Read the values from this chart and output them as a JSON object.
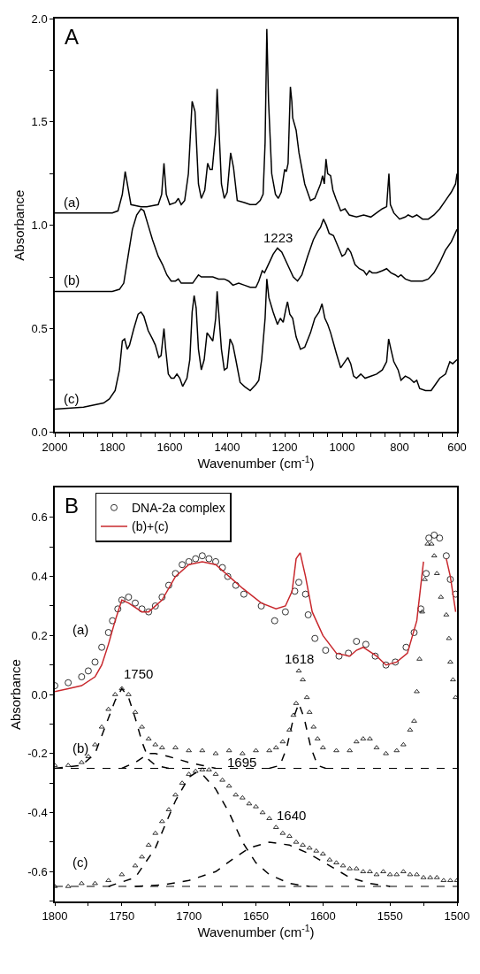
{
  "chart_data": [
    {
      "type": "line",
      "xlabel": "Wavenumber (cm$^{-1}$)",
      "ylabel": "Absorbance",
      "xlim": [
        2000,
        600
      ],
      "ylim": [
        0,
        2
      ],
      "legend": false,
      "xticks": [
        2000,
        {
          "value": 1950,
          "label": null
        },
        {
          "value": 1900,
          "label": null
        },
        {
          "value": 1850,
          "label": null
        },
        1800,
        {
          "value": 1750,
          "label": null
        },
        {
          "value": 1700,
          "label": null
        },
        {
          "value": 1650,
          "label": null
        },
        1600,
        {
          "value": 1550,
          "label": null
        },
        {
          "value": 1500,
          "label": null
        },
        {
          "value": 1450,
          "label": null
        },
        1400,
        {
          "value": 1350,
          "label": null
        },
        {
          "value": 1300,
          "label": null
        },
        {
          "value": 1250,
          "label": null
        },
        1200,
        {
          "value": 1150,
          "label": null
        },
        {
          "value": 1100,
          "label": null
        },
        {
          "value": 1050,
          "label": null
        },
        1000,
        {
          "value": 950,
          "label": null
        },
        {
          "value": 900,
          "label": null
        },
        {
          "value": 850,
          "label": null
        },
        800,
        {
          "value": 750,
          "label": null
        },
        {
          "value": 700,
          "label": null
        },
        {
          "value": 650,
          "label": null
        },
        600
      ],
      "yticks": [
        {
          "value": 0,
          "label": "0.0"
        },
        {
          "value": 0.25,
          "label": null
        },
        0.5,
        {
          "value": 0.75,
          "label": null
        },
        {
          "value": 1,
          "label": "1.0"
        },
        {
          "value": 1.25,
          "label": null
        },
        1.5,
        {
          "value": 1.75,
          "label": null
        },
        {
          "value": 2,
          "label": "2.0"
        }
      ],
      "annotations": [
        "A",
        "1223"
      ],
      "series": [
        {
          "name": "(a)",
          "color": "#000000",
          "x": [
            2000,
            1800,
            1780,
            1765,
            1755,
            1745,
            1735,
            1700,
            1680,
            1640,
            1628,
            1620,
            1612,
            1600,
            1580,
            1570,
            1560,
            1548,
            1535,
            1522,
            1512,
            1500,
            1490,
            1478,
            1468,
            1460,
            1452,
            1440,
            1435,
            1428,
            1420,
            1410,
            1400,
            1388,
            1378,
            1365,
            1340,
            1320,
            1300,
            1285,
            1275,
            1268,
            1262,
            1256,
            1245,
            1232,
            1222,
            1212,
            1200,
            1194,
            1188,
            1180,
            1175,
            1172,
            1160,
            1150,
            1130,
            1110,
            1095,
            1075,
            1068,
            1062,
            1056,
            1050,
            1040,
            1032,
            1022,
            1005,
            990,
            975,
            950,
            925,
            900,
            880,
            860,
            845,
            837,
            832,
            820,
            800,
            780,
            770,
            755,
            740,
            720,
            700,
            680,
            660,
            640,
            620,
            605,
            600
          ],
          "values": [
            1.06,
            1.06,
            1.07,
            1.15,
            1.26,
            1.18,
            1.1,
            1.09,
            1.09,
            1.1,
            1.15,
            1.3,
            1.15,
            1.1,
            1.11,
            1.13,
            1.1,
            1.12,
            1.25,
            1.6,
            1.55,
            1.2,
            1.13,
            1.17,
            1.3,
            1.27,
            1.27,
            1.45,
            1.66,
            1.45,
            1.2,
            1.13,
            1.16,
            1.35,
            1.28,
            1.12,
            1.11,
            1.1,
            1.1,
            1.12,
            1.15,
            1.4,
            1.95,
            1.6,
            1.25,
            1.15,
            1.13,
            1.16,
            1.27,
            1.26,
            1.3,
            1.67,
            1.6,
            1.52,
            1.46,
            1.35,
            1.2,
            1.12,
            1.13,
            1.2,
            1.24,
            1.2,
            1.32,
            1.25,
            1.24,
            1.17,
            1.13,
            1.07,
            1.08,
            1.05,
            1.04,
            1.05,
            1.04,
            1.06,
            1.08,
            1.09,
            1.25,
            1.1,
            1.06,
            1.03,
            1.04,
            1.05,
            1.04,
            1.05,
            1.03,
            1.03,
            1.05,
            1.08,
            1.12,
            1.16,
            1.2,
            1.25
          ]
        },
        {
          "name": "(b)",
          "color": "#000000",
          "x": [
            2000,
            1800,
            1775,
            1760,
            1745,
            1730,
            1715,
            1700,
            1690,
            1675,
            1660,
            1640,
            1625,
            1610,
            1595,
            1580,
            1570,
            1560,
            1540,
            1520,
            1510,
            1500,
            1490,
            1470,
            1450,
            1430,
            1410,
            1395,
            1380,
            1360,
            1340,
            1320,
            1300,
            1290,
            1278,
            1270,
            1260,
            1240,
            1225,
            1210,
            1190,
            1170,
            1155,
            1140,
            1120,
            1100,
            1085,
            1075,
            1065,
            1055,
            1045,
            1030,
            1015,
            1000,
            990,
            980,
            970,
            955,
            940,
            925,
            915,
            905,
            895,
            880,
            860,
            845,
            830,
            815,
            805,
            795,
            780,
            760,
            740,
            720,
            700,
            680,
            660,
            640,
            620,
            600
          ],
          "values": [
            0.68,
            0.68,
            0.69,
            0.72,
            0.85,
            0.98,
            1.05,
            1.08,
            1.07,
            1.0,
            0.93,
            0.85,
            0.81,
            0.76,
            0.73,
            0.73,
            0.74,
            0.72,
            0.72,
            0.72,
            0.74,
            0.76,
            0.75,
            0.75,
            0.75,
            0.74,
            0.74,
            0.73,
            0.71,
            0.72,
            0.71,
            0.7,
            0.7,
            0.73,
            0.78,
            0.77,
            0.8,
            0.86,
            0.89,
            0.87,
            0.81,
            0.75,
            0.73,
            0.76,
            0.85,
            0.93,
            0.97,
            0.99,
            1.03,
            1.0,
            0.96,
            0.95,
            0.9,
            0.85,
            0.86,
            0.89,
            0.87,
            0.81,
            0.79,
            0.78,
            0.76,
            0.78,
            0.77,
            0.77,
            0.78,
            0.79,
            0.77,
            0.76,
            0.75,
            0.76,
            0.74,
            0.73,
            0.73,
            0.73,
            0.74,
            0.77,
            0.82,
            0.88,
            0.92,
            0.98
          ]
        },
        {
          "name": "(c)",
          "color": "#000000",
          "x": [
            2000,
            1900,
            1830,
            1810,
            1790,
            1775,
            1765,
            1757,
            1748,
            1740,
            1725,
            1710,
            1700,
            1690,
            1675,
            1660,
            1650,
            1638,
            1630,
            1624,
            1620,
            1614,
            1605,
            1595,
            1585,
            1575,
            1565,
            1555,
            1540,
            1530,
            1522,
            1515,
            1508,
            1500,
            1490,
            1480,
            1470,
            1460,
            1450,
            1440,
            1435,
            1428,
            1420,
            1410,
            1400,
            1390,
            1380,
            1370,
            1355,
            1340,
            1320,
            1300,
            1290,
            1280,
            1268,
            1262,
            1255,
            1240,
            1225,
            1215,
            1205,
            1195,
            1190,
            1182,
            1172,
            1160,
            1145,
            1130,
            1110,
            1095,
            1080,
            1070,
            1060,
            1050,
            1040,
            1030,
            1020,
            1005,
            995,
            980,
            970,
            960,
            950,
            935,
            920,
            900,
            880,
            860,
            845,
            838,
            830,
            820,
            805,
            795,
            780,
            765,
            750,
            740,
            730,
            710,
            690,
            675,
            660,
            640,
            625,
            615,
            600
          ],
          "values": [
            0.11,
            0.12,
            0.14,
            0.16,
            0.2,
            0.3,
            0.44,
            0.45,
            0.4,
            0.42,
            0.5,
            0.57,
            0.58,
            0.56,
            0.49,
            0.45,
            0.42,
            0.36,
            0.37,
            0.45,
            0.5,
            0.4,
            0.28,
            0.26,
            0.26,
            0.28,
            0.26,
            0.22,
            0.26,
            0.35,
            0.58,
            0.66,
            0.6,
            0.4,
            0.3,
            0.35,
            0.48,
            0.46,
            0.44,
            0.55,
            0.68,
            0.55,
            0.4,
            0.3,
            0.31,
            0.45,
            0.42,
            0.35,
            0.24,
            0.22,
            0.2,
            0.23,
            0.25,
            0.35,
            0.55,
            0.74,
            0.65,
            0.58,
            0.52,
            0.55,
            0.53,
            0.6,
            0.63,
            0.57,
            0.55,
            0.46,
            0.4,
            0.41,
            0.48,
            0.55,
            0.58,
            0.62,
            0.55,
            0.52,
            0.48,
            0.43,
            0.38,
            0.31,
            0.33,
            0.36,
            0.33,
            0.27,
            0.26,
            0.28,
            0.26,
            0.27,
            0.28,
            0.3,
            0.34,
            0.45,
            0.4,
            0.34,
            0.3,
            0.25,
            0.27,
            0.26,
            0.24,
            0.25,
            0.21,
            0.2,
            0.2,
            0.23,
            0.26,
            0.28,
            0.34,
            0.33,
            0.35
          ]
        }
      ]
    },
    {
      "type": "line",
      "xlabel": "Wavenumber (cm$^{-1}$)",
      "ylabel": "Absorbance",
      "xlim": [
        1800,
        1500
      ],
      "ylim": [
        -0.7,
        0.7
      ],
      "legend": "top left",
      "xticks": [
        1800,
        {
          "value": 1775,
          "label": null
        },
        1750,
        {
          "value": 1725,
          "label": null
        },
        1700,
        {
          "value": 1675,
          "label": null
        },
        1650,
        {
          "value": 1625,
          "label": null
        },
        1600,
        {
          "value": 1575,
          "label": null
        },
        1550,
        {
          "value": 1525,
          "label": null
        },
        1500
      ],
      "yticks": [
        {
          "value": -0.7,
          "label": null
        },
        -0.6,
        {
          "value": -0.5,
          "label": null
        },
        -0.4,
        {
          "value": -0.3,
          "label": null
        },
        -0.2,
        {
          "value": -0.1,
          "label": null
        },
        {
          "value": 0,
          "label": "0.0"
        },
        {
          "value": 0.1,
          "label": null
        },
        0.2,
        {
          "value": 0.3,
          "label": null
        },
        0.4,
        {
          "value": 0.5,
          "label": null
        },
        0.6
      ],
      "annotations": [
        "B",
        "(a)",
        "(b)",
        "(c)",
        "1750",
        "1618",
        "1695",
        "1640"
      ],
      "ref_lines": [
        {
          "axis": "y",
          "value": -0.25,
          "color": "#000000",
          "line_style": "dashed"
        },
        {
          "axis": "y",
          "value": -0.65,
          "color": "#000000",
          "line_style": "dashed"
        }
      ],
      "series": [
        {
          "name": "DNA-2a complex",
          "type": "scatter",
          "marker": "circle",
          "color": "#000000",
          "x": [
            1800,
            1790,
            1780,
            1775,
            1770,
            1765,
            1760,
            1757,
            1753,
            1750,
            1745,
            1740,
            1735,
            1730,
            1725,
            1720,
            1715,
            1710,
            1705,
            1700,
            1695,
            1690,
            1685,
            1680,
            1675,
            1671,
            1665,
            1659,
            1646,
            1636,
            1628,
            1621,
            1618,
            1613,
            1611,
            1606,
            1598,
            1588,
            1581,
            1575,
            1568,
            1561,
            1553,
            1546,
            1538,
            1532,
            1527,
            1523,
            1521,
            1517,
            1513,
            1508,
            1505,
            1501
          ],
          "values": [
            0.03,
            0.04,
            0.06,
            0.08,
            0.11,
            0.16,
            0.21,
            0.25,
            0.29,
            0.32,
            0.33,
            0.31,
            0.29,
            0.28,
            0.3,
            0.33,
            0.37,
            0.41,
            0.44,
            0.45,
            0.46,
            0.47,
            0.46,
            0.45,
            0.43,
            0.4,
            0.37,
            0.34,
            0.3,
            0.25,
            0.28,
            0.35,
            0.38,
            0.34,
            0.27,
            0.19,
            0.15,
            0.13,
            0.14,
            0.18,
            0.17,
            0.13,
            0.1,
            0.11,
            0.16,
            0.21,
            0.29,
            0.41,
            0.53,
            0.54,
            0.53,
            0.47,
            0.39,
            0.34
          ]
        },
        {
          "name": "(b)+(c)",
          "line_style": "solid",
          "color": "#c8282d",
          "x": [
            1800,
            1790,
            1780,
            1770,
            1765,
            1760,
            1755,
            1750,
            1745,
            1735,
            1730,
            1720,
            1710,
            1700,
            1690,
            1680,
            1670,
            1660,
            1646,
            1635,
            1628,
            1623,
            1620,
            1617,
            1613,
            1608,
            1600,
            1590,
            1580,
            1575,
            1570,
            1560,
            1553,
            1545,
            1537,
            1530,
            1525,
            1521,
            1517,
            1513,
            1508,
            1505,
            1501
          ],
          "values": [
            0.01,
            0.02,
            0.03,
            0.06,
            0.1,
            0.17,
            0.25,
            0.32,
            0.31,
            0.28,
            0.28,
            0.32,
            0.4,
            0.44,
            0.45,
            0.44,
            0.4,
            0.36,
            0.31,
            0.29,
            0.3,
            0.35,
            0.46,
            0.48,
            0.4,
            0.28,
            0.2,
            0.14,
            0.13,
            0.15,
            0.16,
            0.13,
            0.1,
            0.11,
            0.14,
            0.25,
            0.45,
            null,
            null,
            null,
            0.46,
            0.4,
            0.28
          ]
        },
        {
          "type": "scatter",
          "marker": "triangle",
          "color": "#000000",
          "x": [
            1800,
            1790,
            1780,
            1775,
            1770,
            1765,
            1760,
            1755,
            1750,
            1745,
            1740,
            1735,
            1730,
            1725,
            1720,
            1710,
            1700,
            1690,
            1680,
            1670,
            1660,
            1650,
            1640,
            1635,
            1630,
            1625,
            1622,
            1620,
            1618,
            1615,
            1612,
            1610,
            1607,
            1604,
            1600,
            1590,
            1580,
            1575,
            1570,
            1565,
            1560,
            1553,
            1545,
            1540,
            1535,
            1532,
            1530,
            1528,
            1526,
            1524,
            1522,
            1519,
            1517,
            1515,
            1512,
            1508,
            1506,
            1505,
            1503,
            1501
          ],
          "values": [
            -0.24,
            -0.24,
            -0.23,
            -0.21,
            -0.17,
            -0.11,
            -0.05,
            0.0,
            0.02,
            0.0,
            -0.06,
            -0.11,
            -0.15,
            -0.17,
            -0.18,
            -0.18,
            -0.19,
            -0.19,
            -0.2,
            -0.19,
            -0.2,
            -0.19,
            -0.19,
            -0.18,
            -0.16,
            -0.12,
            -0.07,
            -0.03,
            0.08,
            0.05,
            -0.01,
            -0.06,
            -0.11,
            -0.15,
            -0.18,
            -0.19,
            -0.19,
            -0.16,
            -0.15,
            -0.15,
            -0.18,
            -0.2,
            -0.19,
            -0.17,
            -0.12,
            -0.09,
            0.01,
            0.12,
            0.28,
            0.39,
            0.51,
            0.51,
            0.47,
            0.41,
            0.33,
            0.27,
            0.19,
            0.11,
            0.05,
            -0.01
          ]
        },
        {
          "type": "scatter",
          "marker": "triangle",
          "color": "#000000",
          "x": [
            1800,
            1790,
            1780,
            1770,
            1760,
            1750,
            1740,
            1735,
            1730,
            1725,
            1720,
            1715,
            1710,
            1705,
            1700,
            1695,
            1690,
            1685,
            1680,
            1675,
            1670,
            1665,
            1660,
            1655,
            1650,
            1645,
            1640,
            1635,
            1630,
            1625,
            1620,
            1615,
            1610,
            1605,
            1600,
            1595,
            1590,
            1585,
            1580,
            1575,
            1570,
            1565,
            1560,
            1555,
            1550,
            1545,
            1540,
            1535,
            1530,
            1525,
            1520,
            1515,
            1510,
            1505,
            1500
          ],
          "values": [
            -0.65,
            -0.65,
            -0.64,
            -0.64,
            -0.63,
            -0.61,
            -0.58,
            -0.55,
            -0.51,
            -0.47,
            -0.43,
            -0.39,
            -0.34,
            -0.3,
            -0.27,
            -0.26,
            -0.255,
            -0.255,
            -0.27,
            -0.29,
            -0.31,
            -0.34,
            -0.35,
            -0.37,
            -0.38,
            -0.4,
            -0.42,
            -0.45,
            -0.47,
            -0.48,
            -0.5,
            -0.51,
            -0.52,
            -0.53,
            -0.54,
            -0.56,
            -0.57,
            -0.58,
            -0.59,
            -0.59,
            -0.6,
            -0.6,
            -0.61,
            -0.6,
            -0.61,
            -0.61,
            -0.6,
            -0.61,
            -0.61,
            -0.62,
            -0.62,
            -0.62,
            -0.63,
            -0.63,
            -0.63
          ]
        },
        {
          "line_style": "dashed",
          "color": "#000000",
          "x": [
            1800,
            1780,
            1770,
            1760,
            1755,
            1750,
            1745,
            1740,
            1735,
            1730,
            1725,
            1715
          ],
          "values": [
            -0.25,
            -0.24,
            -0.2,
            -0.08,
            -0.02,
            0.02,
            -0.01,
            -0.08,
            -0.16,
            -0.22,
            -0.24,
            -0.25
          ]
        },
        {
          "line_style": "dashed",
          "color": "#000000",
          "x": [
            1750,
            1740,
            1730,
            1725,
            1715,
            1700,
            1690,
            1680
          ],
          "values": [
            -0.25,
            -0.23,
            -0.2,
            -0.2,
            -0.21,
            -0.23,
            -0.24,
            -0.25
          ]
        },
        {
          "line_style": "dashed",
          "color": "#000000",
          "x": [
            1640,
            1632,
            1627,
            1622,
            1618,
            1614,
            1609,
            1604,
            1598
          ],
          "values": [
            -0.25,
            -0.24,
            -0.18,
            -0.08,
            -0.03,
            -0.08,
            -0.18,
            -0.24,
            -0.25
          ]
        },
        {
          "line_style": "dashed",
          "color": "#000000",
          "x": [
            1760,
            1740,
            1725,
            1710,
            1700,
            1695,
            1690,
            1680,
            1670,
            1660,
            1650,
            1640,
            1625,
            1610
          ],
          "values": [
            -0.65,
            -0.62,
            -0.52,
            -0.36,
            -0.28,
            -0.265,
            -0.27,
            -0.32,
            -0.4,
            -0.5,
            -0.57,
            -0.61,
            -0.64,
            -0.65
          ]
        },
        {
          "line_style": "dashed",
          "color": "#000000",
          "x": [
            1740,
            1720,
            1700,
            1680,
            1665,
            1655,
            1640,
            1625,
            1610,
            1595,
            1580,
            1565,
            1550
          ],
          "values": [
            -0.65,
            -0.645,
            -0.63,
            -0.6,
            -0.55,
            -0.52,
            -0.5,
            -0.51,
            -0.54,
            -0.58,
            -0.62,
            -0.64,
            -0.65
          ]
        }
      ]
    }
  ]
}
